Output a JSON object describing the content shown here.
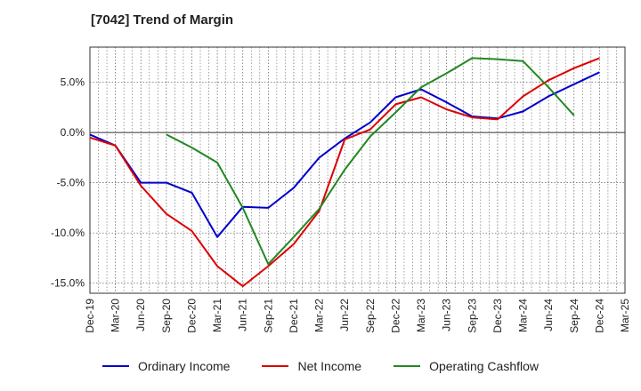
{
  "chart_data": {
    "type": "line",
    "title": "[7042]  Trend of Margin",
    "x": [
      "Dec-19",
      "Mar-20",
      "Jun-20",
      "Sep-20",
      "Dec-20",
      "Mar-21",
      "Jun-21",
      "Sep-21",
      "Dec-21",
      "Mar-22",
      "Jun-22",
      "Sep-22",
      "Dec-22",
      "Mar-23",
      "Jun-23",
      "Sep-23",
      "Dec-23",
      "Mar-24",
      "Jun-24",
      "Sep-24",
      "Dec-24",
      "Mar-25"
    ],
    "ylim": [
      -16,
      8.5
    ],
    "yticks": [
      5.0,
      0.0,
      -5.0,
      -10.0,
      -15.0
    ],
    "ytick_labels": [
      "5.0%",
      "0.0%",
      "-5.0%",
      "-10.0%",
      "-15.0%"
    ],
    "grid": true,
    "legend_position": "bottom",
    "series": [
      {
        "name": "Ordinary Income",
        "color": "#0000cc",
        "values": [
          -0.2,
          -1.3,
          -5.0,
          -5.0,
          -6.0,
          -10.4,
          -7.4,
          -7.5,
          -5.5,
          -2.5,
          -0.6,
          1.0,
          3.5,
          4.3,
          3.0,
          1.6,
          1.4,
          2.1,
          3.6,
          4.8,
          6.0,
          null
        ]
      },
      {
        "name": "Net Income",
        "color": "#dd0000",
        "values": [
          -0.5,
          -1.3,
          -5.3,
          -8.1,
          -9.8,
          -13.3,
          -15.3,
          -13.3,
          -11.1,
          -7.8,
          -0.7,
          0.3,
          2.8,
          3.5,
          2.3,
          1.5,
          1.3,
          3.6,
          5.2,
          6.4,
          7.4,
          null
        ]
      },
      {
        "name": "Operating Cashflow",
        "color": "#228822",
        "values": [
          null,
          null,
          null,
          -0.2,
          -1.5,
          -3.0,
          -7.5,
          -13.1,
          -10.4,
          -7.6,
          -3.7,
          -0.4,
          2.0,
          4.5,
          5.9,
          7.4,
          7.3,
          7.1,
          4.5,
          1.7,
          null,
          null
        ]
      }
    ]
  }
}
